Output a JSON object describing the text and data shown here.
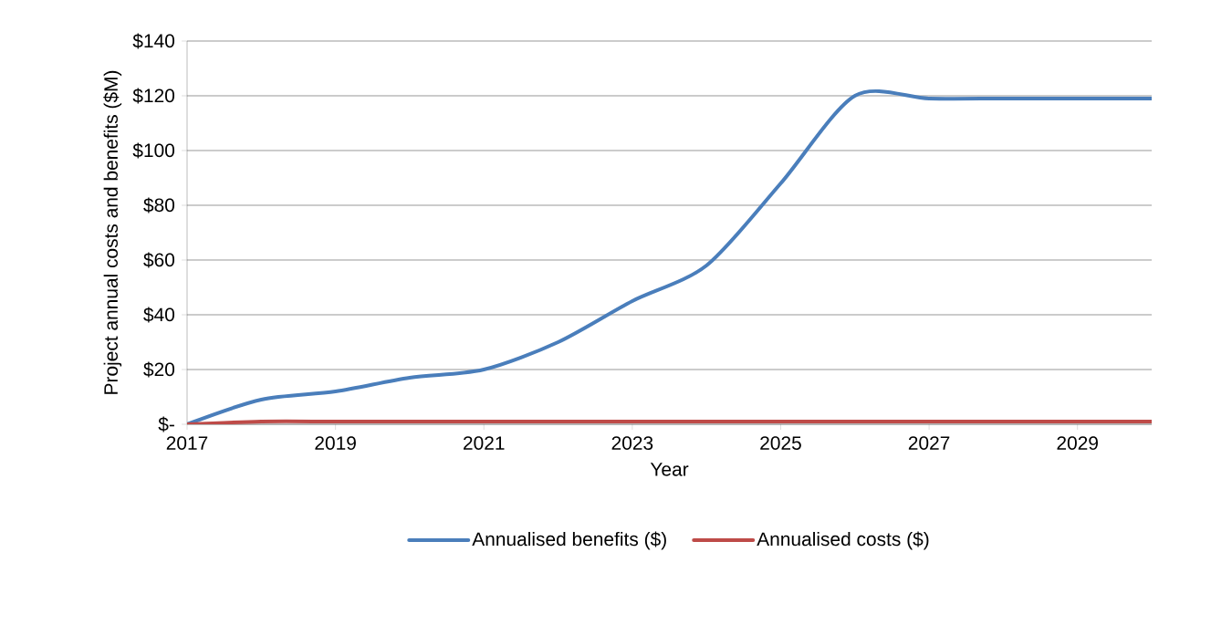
{
  "chart_data": {
    "type": "line",
    "xlabel": "Year",
    "ylabel": "Project annual costs and benefits ($M)",
    "x": [
      2017,
      2018,
      2019,
      2020,
      2021,
      2022,
      2023,
      2024,
      2025,
      2026,
      2027,
      2028,
      2029,
      2030
    ],
    "series": [
      {
        "name": "Annualised benefits ($)",
        "color": "#4a7ebb",
        "values": [
          0,
          9,
          12,
          17,
          20,
          30,
          45,
          58,
          88,
          120,
          119,
          119,
          119,
          119
        ]
      },
      {
        "name": "Annualised costs ($)",
        "color": "#be4b48",
        "values": [
          0,
          1,
          1,
          1,
          1,
          1,
          1,
          1,
          1,
          1,
          1,
          1,
          1,
          1
        ]
      }
    ],
    "xlim": [
      2017,
      2030
    ],
    "xticks": [
      2017,
      2019,
      2021,
      2023,
      2025,
      2027,
      2029
    ],
    "ylim": [
      0,
      140
    ],
    "yticks": [
      {
        "value": 0,
        "label": "$-"
      },
      {
        "value": 20,
        "label": "$20"
      },
      {
        "value": 40,
        "label": "$40"
      },
      {
        "value": 60,
        "label": "$60"
      },
      {
        "value": 80,
        "label": "$80"
      },
      {
        "value": 100,
        "label": "$100"
      },
      {
        "value": 120,
        "label": "$120"
      },
      {
        "value": 140,
        "label": "$140"
      }
    ],
    "grid": "y",
    "legend": "bottom",
    "marker": "none",
    "line_style": "solid"
  }
}
